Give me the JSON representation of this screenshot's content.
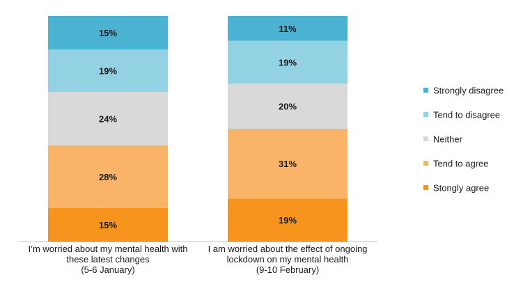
{
  "chart_data": {
    "type": "bar",
    "stacked": true,
    "normalized_percent": true,
    "categories": [
      [
        "I’m worried about my mental health with",
        "these latest changes",
        "(5-6 January)"
      ],
      [
        "I am worried about the effect of ongoing",
        "lockdown on my mental health",
        "(9-10 February)"
      ]
    ],
    "series": [
      {
        "name": "Stongly agree",
        "color": "#F7941D",
        "values": [
          15,
          19
        ],
        "labels": [
          "15%",
          "19%"
        ]
      },
      {
        "name": "Tend to agree",
        "color": "#F9B468",
        "values": [
          28,
          31
        ],
        "labels": [
          "28%",
          "31%"
        ]
      },
      {
        "name": "Neither",
        "color": "#D9D9D9",
        "values": [
          24,
          20
        ],
        "labels": [
          "24%",
          "20%"
        ]
      },
      {
        "name": "Tend to disagree",
        "color": "#92D2E3",
        "values": [
          19,
          19
        ],
        "labels": [
          "19%",
          "19%"
        ]
      },
      {
        "name": "Strongly disagree",
        "color": "#4BB3D1",
        "values": [
          15,
          11
        ],
        "labels": [
          "15%",
          "11%"
        ]
      }
    ],
    "legend_order": [
      "Strongly disagree",
      "Tend to disagree",
      "Neither",
      "Tend to agree",
      "Stongly agree"
    ],
    "legend_position": "right",
    "axis_color": "#BFBFBF",
    "grid": false
  }
}
